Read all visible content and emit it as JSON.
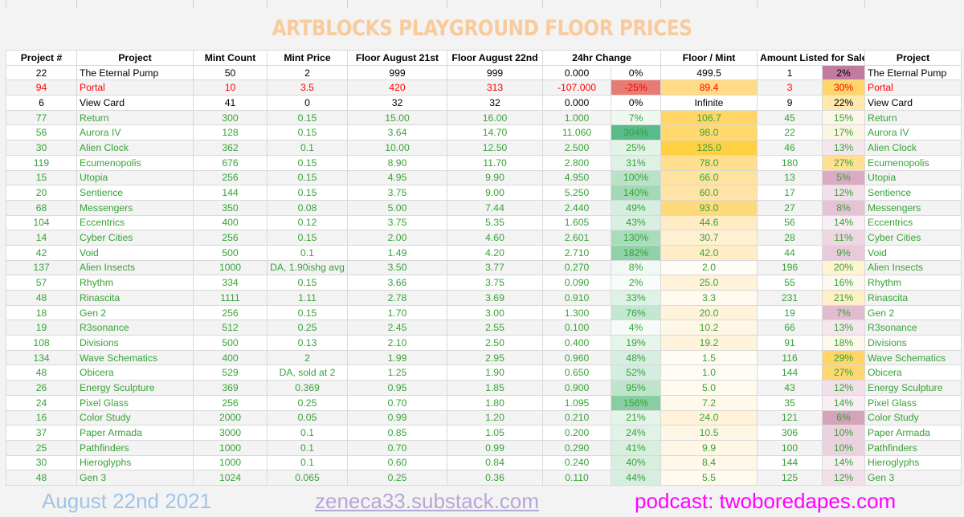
{
  "title": "ARTBLOCKS PLAYGROUND FLOOR PRICES",
  "headers": [
    "Project #",
    "Project",
    "Mint Count",
    "Mint Price",
    "Floor August 21st",
    "Floor August 22nd",
    "24hr Change",
    "",
    "Floor / Mint",
    "Amount Listed for Sale",
    "",
    "Project"
  ],
  "rows": [
    [
      "22",
      "The Eternal Pump",
      "50",
      "2",
      "999",
      "999",
      "0.000",
      "0%",
      "499.5",
      "1",
      "2%",
      "The Eternal Pump"
    ],
    [
      "94",
      "Portal",
      "10",
      "3.5",
      "420",
      "313",
      "-107.000",
      "-25%",
      "89.4",
      "3",
      "30%",
      "Portal"
    ],
    [
      "6",
      "View Card",
      "41",
      "0",
      "32",
      "32",
      "0.000",
      "0%",
      "Infinite",
      "9",
      "22%",
      "View Card"
    ],
    [
      "77",
      "Return",
      "300",
      "0.15",
      "15.00",
      "16.00",
      "1.000",
      "7%",
      "106.7",
      "45",
      "15%",
      "Return"
    ],
    [
      "56",
      "Aurora IV",
      "128",
      "0.15",
      "3.64",
      "14.70",
      "11.060",
      "304%",
      "98.0",
      "22",
      "17%",
      "Aurora IV"
    ],
    [
      "30",
      "Alien Clock",
      "362",
      "0.1",
      "10.00",
      "12.50",
      "2.500",
      "25%",
      "125.0",
      "46",
      "13%",
      "Alien Clock"
    ],
    [
      "119",
      "Ecumenopolis",
      "676",
      "0.15",
      "8.90",
      "11.70",
      "2.800",
      "31%",
      "78.0",
      "180",
      "27%",
      "Ecumenopolis"
    ],
    [
      "15",
      "Utopia",
      "256",
      "0.15",
      "4.95",
      "9.90",
      "4.950",
      "100%",
      "66.0",
      "13",
      "5%",
      "Utopia"
    ],
    [
      "20",
      "Sentience",
      "144",
      "0.15",
      "3.75",
      "9.00",
      "5.250",
      "140%",
      "60.0",
      "17",
      "12%",
      "Sentience"
    ],
    [
      "68",
      "Messengers",
      "350",
      "0.08",
      "5.00",
      "7.44",
      "2.440",
      "49%",
      "93.0",
      "27",
      "8%",
      "Messengers"
    ],
    [
      "104",
      "Eccentrics",
      "400",
      "0.12",
      "3.75",
      "5.35",
      "1.605",
      "43%",
      "44.6",
      "56",
      "14%",
      "Eccentrics"
    ],
    [
      "14",
      "Cyber Cities",
      "256",
      "0.15",
      "2.00",
      "4.60",
      "2.601",
      "130%",
      "30.7",
      "28",
      "11%",
      "Cyber Cities"
    ],
    [
      "42",
      "Void",
      "500",
      "0.1",
      "1.49",
      "4.20",
      "2.710",
      "182%",
      "42.0",
      "44",
      "9%",
      "Void"
    ],
    [
      "137",
      "Alien Insects",
      "1000",
      "DA, 1.90ishg avg",
      "3.50",
      "3.77",
      "0.270",
      "8%",
      "2.0",
      "196",
      "20%",
      "Alien Insects"
    ],
    [
      "57",
      "Rhythm",
      "334",
      "0.15",
      "3.66",
      "3.75",
      "0.090",
      "2%",
      "25.0",
      "55",
      "16%",
      "Rhythm"
    ],
    [
      "48",
      "Rinascita",
      "1111",
      "1.11",
      "2.78",
      "3.69",
      "0.910",
      "33%",
      "3.3",
      "231",
      "21%",
      "Rinascita"
    ],
    [
      "18",
      "Gen 2",
      "256",
      "0.15",
      "1.70",
      "3.00",
      "1.300",
      "76%",
      "20.0",
      "19",
      "7%",
      "Gen 2"
    ],
    [
      "19",
      "R3sonance",
      "512",
      "0.25",
      "2.45",
      "2.55",
      "0.100",
      "4%",
      "10.2",
      "66",
      "13%",
      "R3sonance"
    ],
    [
      "108",
      "Divisions",
      "500",
      "0.13",
      "2.10",
      "2.50",
      "0.400",
      "19%",
      "19.2",
      "91",
      "18%",
      "Divisions"
    ],
    [
      "134",
      "Wave Schematics",
      "400",
      "2",
      "1.99",
      "2.95",
      "0.960",
      "48%",
      "1.5",
      "116",
      "29%",
      "Wave Schematics"
    ],
    [
      "48",
      "Obicera",
      "529",
      "DA, sold at 2",
      "1.25",
      "1.90",
      "0.650",
      "52%",
      "1.0",
      "144",
      "27%",
      "Obicera"
    ],
    [
      "26",
      "Energy Sculpture",
      "369",
      "0.369",
      "0.95",
      "1.85",
      "0.900",
      "95%",
      "5.0",
      "43",
      "12%",
      "Energy Sculpture"
    ],
    [
      "24",
      "Pixel Glass",
      "256",
      "0.25",
      "0.70",
      "1.80",
      "1.095",
      "156%",
      "7.2",
      "35",
      "14%",
      "Pixel Glass"
    ],
    [
      "16",
      "Color Study",
      "2000",
      "0.05",
      "0.99",
      "1.20",
      "0.210",
      "21%",
      "24.0",
      "121",
      "6%",
      "Color Study"
    ],
    [
      "37",
      "Paper Armada",
      "3000",
      "0.1",
      "0.85",
      "1.05",
      "0.200",
      "24%",
      "10.5",
      "306",
      "10%",
      "Paper Armada"
    ],
    [
      "25",
      "Pathfinders",
      "1000",
      "0.1",
      "0.70",
      "0.99",
      "0.290",
      "41%",
      "9.9",
      "100",
      "10%",
      "Pathfinders"
    ],
    [
      "30",
      "Hieroglyphs",
      "1000",
      "0.1",
      "0.60",
      "0.84",
      "0.240",
      "40%",
      "8.4",
      "144",
      "14%",
      "Hieroglyphs"
    ],
    [
      "48",
      "Gen 3",
      "1024",
      "0.065",
      "0.25",
      "0.36",
      "0.110",
      "44%",
      "5.5",
      "125",
      "12%",
      "Gen 3"
    ]
  ],
  "row_colors": [
    "#000000",
    "#ff0000",
    "#000000",
    "#38a238",
    "#38a238",
    "#38a238",
    "#38a238",
    "#38a238",
    "#38a238",
    "#38a238",
    "#38a238",
    "#38a238",
    "#38a238",
    "#38a238",
    "#38a238",
    "#38a238",
    "#38a238",
    "#38a238",
    "#38a238",
    "#38a238",
    "#38a238",
    "#38a238",
    "#38a238",
    "#38a238",
    "#38a238",
    "#38a238",
    "#38a238",
    "#38a238"
  ],
  "change_colors": [
    "#ffffff",
    "#e67c73",
    "#ffffff",
    "#eef8f1",
    "#57bb8a",
    "#e3f3e8",
    "#ddf1e4",
    "#b9e2c8",
    "#a3d9b7",
    "#d6eedf",
    "#daefe2",
    "#a9dcbb",
    "#90d1a8",
    "#f0f9f3",
    "#f8fcf9",
    "#e0f2e6",
    "#c4e7d1",
    "#f6fbf7",
    "#e6f5eb",
    "#d6eedf",
    "#d3ede0",
    "#bee4cc",
    "#88cea2",
    "#e5f4ea",
    "#e1f3e7",
    "#d8efe0",
    "#d8efe0",
    "#d6eedf"
  ],
  "fm_colors": [
    "#ffffff",
    "#ffdb83",
    "#ffffff",
    "#ffd666",
    "#ffd86f",
    "#ffd042",
    "#ffde8e",
    "#ffe29d",
    "#ffe4a5",
    "#ffda7b",
    "#ffecc4",
    "#fff0d2",
    "#ffedc6",
    "#fffcf5",
    "#fff2d8",
    "#fffbf1",
    "#fff3dc",
    "#fff7e6",
    "#fff3dc",
    "#fffcf5",
    "#fffcf6",
    "#fffaee",
    "#fff9ec",
    "#fff2d9",
    "#fff7e5",
    "#fff7e6",
    "#fff8e8",
    "#fffaee"
  ],
  "pct_colors": [
    "#c27ba0",
    "#ffd666",
    "#ffe8a9",
    "#fdf4ea",
    "#fdf5e4",
    "#f5e6ee",
    "#ffe091",
    "#dcaac4",
    "#f2dfe9",
    "#e6c2d6",
    "#f8eef3",
    "#efd6e3",
    "#e9cadb",
    "#fff3d0",
    "#fdf9ef",
    "#ffefc6",
    "#e3bbd0",
    "#f5e6ee",
    "#fdf8ea",
    "#ffd666",
    "#ffd770",
    "#f2dfe9",
    "#f8eef3",
    "#d5a1bb",
    "#ecd1df",
    "#ecd1df",
    "#f8eef3",
    "#f2dfe9"
  ],
  "footer": {
    "date": "August 22nd 2021",
    "substack": "zeneca33.substack.com",
    "podcast": "podcast: twoboredapes.com"
  }
}
